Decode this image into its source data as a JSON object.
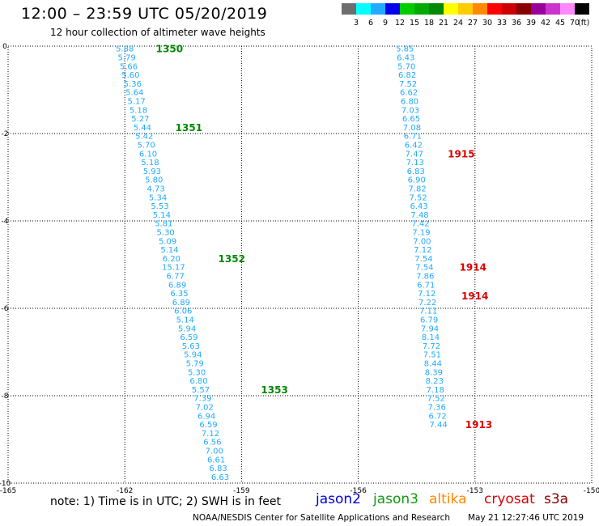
{
  "title": "12:00 – 23:59 UTC 05/20/2019",
  "subtitle": "12 hour collection of altimeter wave heights",
  "note": "note: 1) Time is in UTC; 2) SWH is in feet",
  "credit": "NOAA/NESDIS Center for Satellite Applications and Research",
  "timestamp": "May 21 12:27:46 UTC 2019",
  "satellites": {
    "jason2": {
      "label": "jason2",
      "color": "#0000dd"
    },
    "jason3": {
      "label": "jason3",
      "color": "#119911"
    },
    "altika": {
      "label": "altika",
      "color": "#ff8800"
    },
    "cryosat": {
      "label": "cryosat",
      "color": "#dd0000"
    },
    "s3a": {
      "label": "s3a",
      "color": "#880000"
    }
  },
  "colorbar": {
    "colors": [
      "#6e6e6e",
      "#00ffff",
      "#22aaff",
      "#0000ee",
      "#00cc00",
      "#00aa00",
      "#008800",
      "#ffff00",
      "#ffcc00",
      "#ff8800",
      "#ff0000",
      "#cc0000",
      "#880000",
      "#990099",
      "#cc33cc",
      "#ff88ff",
      "#000000"
    ],
    "labels": [
      "3",
      "6",
      "9",
      "12",
      "15",
      "18",
      "21",
      "24",
      "27",
      "30",
      "33",
      "36",
      "39",
      "42",
      "45",
      "70",
      "(ft)"
    ]
  },
  "chart_data": {
    "type": "scatter",
    "xlim": [
      -165,
      -150
    ],
    "ylim": [
      -10,
      0
    ],
    "xticks": [
      -165,
      -162,
      -159,
      -156,
      -153,
      -150
    ],
    "yticks": [
      0,
      -2,
      -4,
      -6,
      -8,
      -10
    ],
    "grid": true,
    "track_color": "#22aaff",
    "series": [
      {
        "points": [
          [
            -162.0,
            -0.05,
            "5.88"
          ],
          [
            -161.95,
            -0.25,
            "5.79"
          ],
          [
            -161.9,
            -0.45,
            "5.66"
          ],
          [
            -161.85,
            -0.65,
            "5.60"
          ],
          [
            -161.8,
            -0.85,
            "5.36"
          ],
          [
            -161.75,
            -1.05,
            "5.64"
          ],
          [
            -161.7,
            -1.25,
            "5.17"
          ],
          [
            -161.65,
            -1.45,
            "5.18"
          ],
          [
            -161.6,
            -1.65,
            "5.27"
          ],
          [
            -161.55,
            -1.85,
            "5.44"
          ],
          [
            -161.5,
            -2.05,
            "5.42"
          ],
          [
            -161.45,
            -2.25,
            "5.70"
          ],
          [
            -161.4,
            -2.45,
            "6.10"
          ],
          [
            -161.35,
            -2.65,
            "5.18"
          ],
          [
            -161.3,
            -2.85,
            "5.93"
          ],
          [
            -161.25,
            -3.05,
            "5.80"
          ],
          [
            -161.2,
            -3.25,
            "4.73"
          ],
          [
            -161.15,
            -3.45,
            "5.34"
          ],
          [
            -161.1,
            -3.65,
            "5.53"
          ],
          [
            -161.05,
            -3.85,
            "5.14"
          ],
          [
            -161.0,
            -4.05,
            "5.81"
          ],
          [
            -160.95,
            -4.25,
            "5.30"
          ],
          [
            -160.9,
            -4.45,
            "5.09"
          ],
          [
            -160.85,
            -4.65,
            "5.14"
          ],
          [
            -160.8,
            -4.85,
            "6.20"
          ],
          [
            -160.75,
            -5.05,
            "15.17"
          ],
          [
            -160.7,
            -5.25,
            "6.77"
          ],
          [
            -160.65,
            -5.45,
            "6.89"
          ],
          [
            -160.6,
            -5.65,
            "6.35"
          ],
          [
            -160.55,
            -5.85,
            "6.89"
          ],
          [
            -160.5,
            -6.05,
            "6.06"
          ],
          [
            -160.45,
            -6.25,
            "5.14"
          ],
          [
            -160.4,
            -6.45,
            "5.94"
          ],
          [
            -160.35,
            -6.65,
            "6.59"
          ],
          [
            -160.3,
            -6.85,
            "5.63"
          ],
          [
            -160.25,
            -7.05,
            "5.94"
          ],
          [
            -160.2,
            -7.25,
            "5.79"
          ],
          [
            -160.15,
            -7.45,
            "5.30"
          ],
          [
            -160.1,
            -7.65,
            "6.80"
          ],
          [
            -160.05,
            -7.85,
            "5.57"
          ],
          [
            -160.0,
            -8.05,
            "7.39"
          ],
          [
            -159.95,
            -8.25,
            "7.02"
          ],
          [
            -159.9,
            -8.45,
            "6.94"
          ],
          [
            -159.85,
            -8.65,
            "6.59"
          ],
          [
            -159.8,
            -8.85,
            "7.12"
          ],
          [
            -159.75,
            -9.05,
            "6.56"
          ],
          [
            -159.7,
            -9.25,
            "7.00"
          ],
          [
            -159.65,
            -9.45,
            "6.61"
          ],
          [
            -159.6,
            -9.65,
            "6.83"
          ],
          [
            -159.55,
            -9.85,
            "6.63"
          ]
        ]
      },
      {
        "points": [
          [
            -154.8,
            -0.05,
            "5.85"
          ],
          [
            -154.78,
            -0.25,
            "6.43"
          ],
          [
            -154.76,
            -0.45,
            "5.70"
          ],
          [
            -154.74,
            -0.65,
            "6.82"
          ],
          [
            -154.72,
            -0.85,
            "7.52"
          ],
          [
            -154.7,
            -1.05,
            "6.62"
          ],
          [
            -154.68,
            -1.25,
            "6.80"
          ],
          [
            -154.66,
            -1.45,
            "7.03"
          ],
          [
            -154.64,
            -1.65,
            "6.65"
          ],
          [
            -154.62,
            -1.85,
            "7.08"
          ],
          [
            -154.6,
            -2.05,
            "6.71"
          ],
          [
            -154.58,
            -2.25,
            "6.42"
          ],
          [
            -154.56,
            -2.45,
            "7.47"
          ],
          [
            -154.54,
            -2.65,
            "7.13"
          ],
          [
            -154.52,
            -2.85,
            "6.83"
          ],
          [
            -154.5,
            -3.05,
            "6.90"
          ],
          [
            -154.48,
            -3.25,
            "7.82"
          ],
          [
            -154.46,
            -3.45,
            "7.52"
          ],
          [
            -154.44,
            -3.65,
            "6.43"
          ],
          [
            -154.42,
            -3.85,
            "7.48"
          ],
          [
            -154.4,
            -4.05,
            "7.42"
          ],
          [
            -154.38,
            -4.25,
            "7.19"
          ],
          [
            -154.36,
            -4.45,
            "7.00"
          ],
          [
            -154.34,
            -4.65,
            "7.12"
          ],
          [
            -154.32,
            -4.85,
            "7.54"
          ],
          [
            -154.3,
            -5.05,
            "7.54"
          ],
          [
            -154.28,
            -5.25,
            "7.86"
          ],
          [
            -154.26,
            -5.45,
            "6.71"
          ],
          [
            -154.24,
            -5.65,
            "7.12"
          ],
          [
            -154.22,
            -5.85,
            "7.22"
          ],
          [
            -154.2,
            -6.05,
            "7.11"
          ],
          [
            -154.18,
            -6.25,
            "6.79"
          ],
          [
            -154.16,
            -6.45,
            "7.94"
          ],
          [
            -154.14,
            -6.65,
            "8.14"
          ],
          [
            -154.12,
            -6.85,
            "7.72"
          ],
          [
            -154.1,
            -7.05,
            "7.51"
          ],
          [
            -154.08,
            -7.25,
            "8.44"
          ],
          [
            -154.06,
            -7.45,
            "8.39"
          ],
          [
            -154.04,
            -7.65,
            "8.23"
          ],
          [
            -154.02,
            -7.85,
            "7.18"
          ],
          [
            -154.0,
            -8.05,
            "7.52"
          ],
          [
            -153.98,
            -8.25,
            "7.36"
          ],
          [
            -153.96,
            -8.45,
            "6.72"
          ],
          [
            -153.94,
            -8.65,
            "7.44"
          ]
        ]
      }
    ],
    "time_labels": [
      {
        "text": "1350",
        "x": -161.2,
        "y": -0.05,
        "color": "#008800"
      },
      {
        "text": "1351",
        "x": -160.7,
        "y": -1.85,
        "color": "#008800"
      },
      {
        "text": "1352",
        "x": -159.6,
        "y": -4.85,
        "color": "#008800"
      },
      {
        "text": "1353",
        "x": -158.5,
        "y": -7.85,
        "color": "#008800"
      },
      {
        "text": "1915",
        "x": -153.7,
        "y": -2.45,
        "color": "#dd0000"
      },
      {
        "text": "1914",
        "x": -153.4,
        "y": -5.05,
        "color": "#dd0000"
      },
      {
        "text": "1914",
        "x": -153.35,
        "y": -5.7,
        "color": "#dd0000"
      },
      {
        "text": "1913",
        "x": -153.25,
        "y": -8.65,
        "color": "#dd0000"
      }
    ]
  }
}
